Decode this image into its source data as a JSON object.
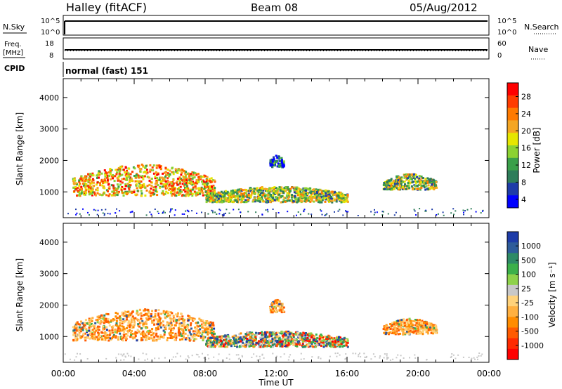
{
  "header": {
    "station": "Halley (fitACF)",
    "beam": "Beam 08",
    "date": "05/Aug/2012"
  },
  "strips": {
    "nsky_label": "N.Sky",
    "nsky_ticks": [
      "10^5",
      "10^0"
    ],
    "nsearch_label": "N.Search",
    "nsearch_ticks": [
      "10^5",
      "10^0"
    ],
    "freq_label_1": "Freq.",
    "freq_label_2": "[MHz]",
    "freq_ticks": [
      "18",
      "8"
    ],
    "nave_label": "Nave",
    "nave_ticks": [
      "60",
      "0"
    ],
    "cpid_label": "CPID",
    "cpid_text": "normal (fast) 151"
  },
  "colorbars": {
    "power": {
      "label": "Power [dB]",
      "ticks": [
        "28",
        "24",
        "20",
        "16",
        "12",
        "8",
        "4"
      ],
      "colors": [
        "#0000ff",
        "#1e3ca8",
        "#2e7d5a",
        "#3aa04a",
        "#8cd232",
        "#e6e600",
        "#f5a623",
        "#ff7a00",
        "#ff3c00",
        "#ff0000"
      ]
    },
    "velocity": {
      "label": "Velocity [m s⁻¹]",
      "ticks": [
        "1000",
        "500",
        "100",
        "25",
        "-25",
        "-100",
        "-500",
        "-1000"
      ],
      "colors": [
        "#1e3ca8",
        "#2e5c9a",
        "#2e8a66",
        "#3cb04a",
        "#8ed24a",
        "#c8c8c8",
        "#ffd27a",
        "#ffb040",
        "#ff8c00",
        "#ff5a00",
        "#ff2a00",
        "#ff0000"
      ]
    }
  },
  "chart_data": [
    {
      "type": "heatmap",
      "title": "",
      "ylabel": "Slant Range [km]",
      "xlabel": "",
      "yticks": [
        "4000",
        "3000",
        "2000",
        "1000"
      ],
      "ylim": [
        180,
        4600
      ],
      "xlim": [
        0,
        24
      ],
      "xticks": [
        "00:00",
        "04:00",
        "08:00",
        "12:00",
        "16:00",
        "20:00",
        "00:00"
      ],
      "quantity": "Power [dB]",
      "echo_bands": [
        {
          "t": [
            0.5,
            8.5
          ],
          "range": [
            900,
            1900
          ],
          "level": "high"
        },
        {
          "t": [
            8.0,
            16.0
          ],
          "range": [
            700,
            1200
          ],
          "level": "medium"
        },
        {
          "t": [
            11.6,
            12.4
          ],
          "range": [
            1800,
            2200
          ],
          "level": "low"
        },
        {
          "t": [
            18.0,
            21.0
          ],
          "range": [
            1100,
            1600
          ],
          "level": "medium"
        }
      ]
    },
    {
      "type": "heatmap",
      "title": "",
      "ylabel": "Slant Range [km]",
      "xlabel": "Time UT",
      "yticks": [
        "4000",
        "3000",
        "2000",
        "1000"
      ],
      "ylim": [
        180,
        4600
      ],
      "xlim": [
        0,
        24
      ],
      "xticks": [
        "00:00",
        "04:00",
        "08:00",
        "12:00",
        "16:00",
        "20:00",
        "00:00"
      ],
      "quantity": "Velocity [m s-1]",
      "echo_bands": [
        {
          "t": [
            0.5,
            8.5
          ],
          "range": [
            900,
            1900
          ],
          "level": "negative"
        },
        {
          "t": [
            8.0,
            16.0
          ],
          "range": [
            700,
            1200
          ],
          "level": "mixed"
        },
        {
          "t": [
            11.6,
            12.4
          ],
          "range": [
            1800,
            2200
          ],
          "level": "negative"
        },
        {
          "t": [
            18.0,
            21.0
          ],
          "range": [
            1100,
            1600
          ],
          "level": "negative"
        }
      ]
    }
  ]
}
